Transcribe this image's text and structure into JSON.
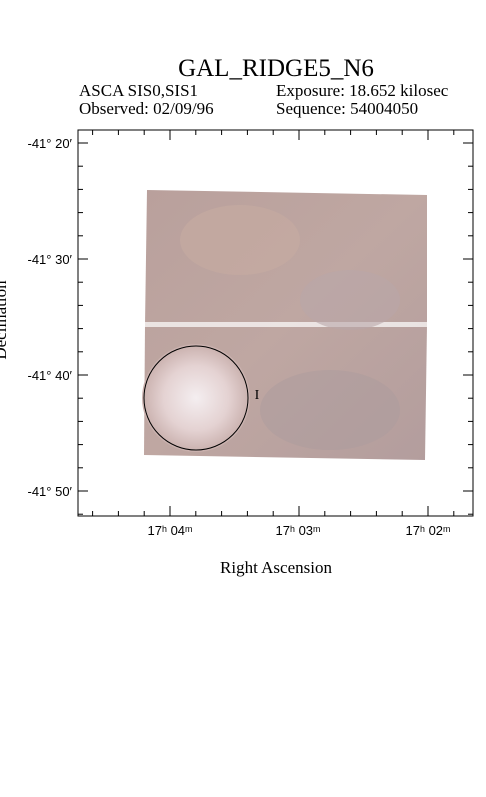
{
  "header": {
    "title": "GAL_RIDGE5_N6",
    "instrument": "ASCA SIS0,SIS1",
    "exposure": "Exposure: 18.652 kilosec",
    "observed": "Observed: 02/09/96",
    "sequence": "Sequence: 54004050"
  },
  "axes": {
    "y_label": "Declination",
    "x_label": "Right Ascension",
    "y_ticks": [
      "-41° 20′",
      "-41° 30′",
      "-41° 40′",
      "-41° 50′"
    ],
    "x_ticks": [
      "17ʰ 04ᵐ",
      "17ʰ 03ᵐ",
      "17ʰ 02ᵐ"
    ]
  },
  "source_marker": "I"
}
